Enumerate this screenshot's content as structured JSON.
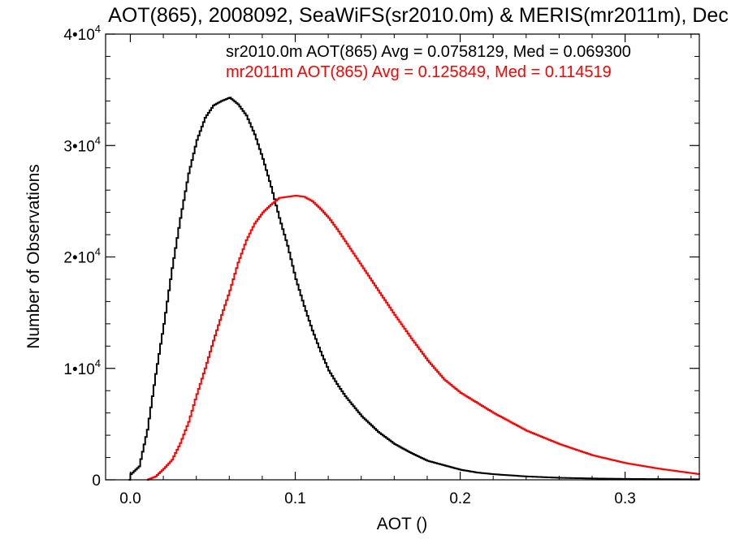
{
  "chart_data": {
    "type": "line",
    "title": "AOT(865), 2008092, SeaWiFS(sr2010.0m) & MERIS(mr2011m), Dec",
    "xlabel": "AOT ()",
    "ylabel": "Number of Observations",
    "xlim": [
      -0.015,
      0.345
    ],
    "ylim": [
      0,
      40000
    ],
    "x_ticks": [
      {
        "value": 0.0,
        "label": "0.0"
      },
      {
        "value": 0.1,
        "label": "0.1"
      },
      {
        "value": 0.2,
        "label": "0.2"
      },
      {
        "value": 0.3,
        "label": "0.3"
      }
    ],
    "y_ticks": [
      {
        "value": 0,
        "mantissa": "0",
        "exp": ""
      },
      {
        "value": 10000,
        "mantissa": "1•10",
        "exp": "4"
      },
      {
        "value": 20000,
        "mantissa": "2•10",
        "exp": "4"
      },
      {
        "value": 30000,
        "mantissa": "3•10",
        "exp": "4"
      },
      {
        "value": 40000,
        "mantissa": "4•10",
        "exp": "4"
      }
    ],
    "grid": false,
    "step": true,
    "series": [
      {
        "name": "sr2010.0m",
        "color": "#000000",
        "legend": "sr2010.0m AOT(865) Avg = 0.0758129, Med = 0.069300",
        "x": [
          -0.001,
          0.0,
          0.005,
          0.01,
          0.015,
          0.02,
          0.025,
          0.03,
          0.035,
          0.04,
          0.045,
          0.05,
          0.055,
          0.06,
          0.065,
          0.07,
          0.075,
          0.08,
          0.085,
          0.09,
          0.095,
          0.1,
          0.105,
          0.11,
          0.115,
          0.12,
          0.125,
          0.13,
          0.14,
          0.15,
          0.16,
          0.17,
          0.18,
          0.19,
          0.2,
          0.21,
          0.22,
          0.24,
          0.26,
          0.28,
          0.3,
          0.32,
          0.345
        ],
        "y": [
          0,
          500,
          1200,
          4500,
          9500,
          14000,
          19000,
          23500,
          27500,
          30500,
          32500,
          33600,
          34000,
          34300,
          33700,
          32700,
          31000,
          28800,
          26300,
          23500,
          21000,
          18000,
          15600,
          13400,
          11500,
          9800,
          8600,
          7500,
          5700,
          4300,
          3200,
          2400,
          1700,
          1300,
          900,
          650,
          500,
          300,
          180,
          120,
          80,
          60,
          40
        ]
      },
      {
        "name": "mr2011m",
        "color": "#ff0000",
        "legend": "mr2011m AOT(865) Avg = 0.125849, Med = 0.114519",
        "x": [
          0.01,
          0.015,
          0.02,
          0.025,
          0.03,
          0.035,
          0.04,
          0.045,
          0.05,
          0.055,
          0.06,
          0.065,
          0.07,
          0.075,
          0.08,
          0.085,
          0.09,
          0.095,
          0.1,
          0.105,
          0.11,
          0.115,
          0.12,
          0.125,
          0.13,
          0.14,
          0.15,
          0.16,
          0.17,
          0.18,
          0.19,
          0.2,
          0.22,
          0.24,
          0.26,
          0.28,
          0.3,
          0.32,
          0.345
        ],
        "y": [
          0,
          300,
          1000,
          1800,
          3300,
          5200,
          7700,
          10000,
          12500,
          14800,
          17000,
          19500,
          21500,
          23000,
          24000,
          24700,
          25300,
          25400,
          25500,
          25400,
          25000,
          24300,
          23500,
          22500,
          21400,
          19200,
          17000,
          14800,
          12700,
          10700,
          9000,
          7800,
          6000,
          4400,
          3200,
          2200,
          1500,
          1000,
          500
        ]
      }
    ]
  }
}
